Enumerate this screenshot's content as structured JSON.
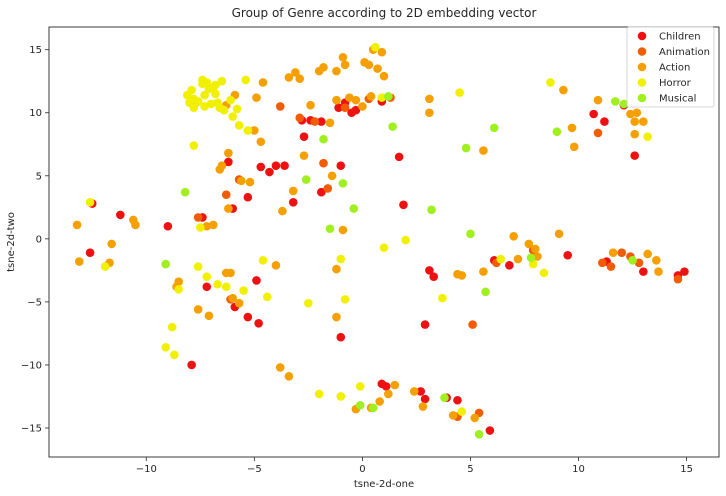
{
  "chart_data": {
    "type": "scatter",
    "title": "Group of Genre according to 2D embedding vector",
    "xlabel": "tsne-2d-one",
    "ylabel": "tsne-2d-two",
    "xlim": [
      -14.5,
      16.5
    ],
    "ylim": [
      -17.3,
      16.8
    ],
    "xticks": [
      -10,
      -5,
      0,
      5,
      10,
      15
    ],
    "yticks": [
      -15,
      -10,
      -5,
      0,
      5,
      10,
      15
    ],
    "grid": false,
    "legend_position": "top-right",
    "series": [
      {
        "name": "Children",
        "color": "#ee1111",
        "points": [
          [
            -12.5,
            2.8
          ],
          [
            -12.6,
            -1.1
          ],
          [
            -11.2,
            1.9
          ],
          [
            -9.0,
            1.0
          ],
          [
            -7.4,
            1.7
          ],
          [
            -7.2,
            -3.8
          ],
          [
            -6.2,
            6.1
          ],
          [
            -6.0,
            2.4
          ],
          [
            -5.7,
            4.7
          ],
          [
            -5.3,
            3.3
          ],
          [
            -4.7,
            5.7
          ],
          [
            -4.3,
            5.3
          ],
          [
            -4.0,
            5.8
          ],
          [
            -3.6,
            5.8
          ],
          [
            -5.9,
            -5.4
          ],
          [
            -5.3,
            -6.2
          ],
          [
            -4.8,
            -6.7
          ],
          [
            -4.9,
            -3.3
          ],
          [
            -3.2,
            2.9
          ],
          [
            -2.7,
            8.1
          ],
          [
            -2.8,
            9.4
          ],
          [
            -2.4,
            9.4
          ],
          [
            -1.9,
            9.3
          ],
          [
            -1.9,
            3.7
          ],
          [
            -1.0,
            5.8
          ],
          [
            -1.1,
            10.4
          ],
          [
            -0.8,
            10.8
          ],
          [
            -0.5,
            10.0
          ],
          [
            -0.3,
            10.2
          ],
          [
            0.9,
            10.9
          ],
          [
            1.7,
            6.5
          ],
          [
            1.9,
            2.7
          ],
          [
            -7.9,
            -10.0
          ],
          [
            -1.0,
            -7.8
          ],
          [
            2.9,
            -6.8
          ],
          [
            3.1,
            -2.5
          ],
          [
            3.3,
            -3.0
          ],
          [
            0.9,
            -11.5
          ],
          [
            1.1,
            -11.7
          ],
          [
            2.7,
            -12.1
          ],
          [
            2.9,
            -12.7
          ],
          [
            3.9,
            -12.6
          ],
          [
            4.4,
            -12.8
          ],
          [
            5.9,
            -15.2
          ],
          [
            6.1,
            -1.7
          ],
          [
            6.8,
            -2.1
          ],
          [
            9.5,
            -1.3
          ],
          [
            10.7,
            9.9
          ],
          [
            11.2,
            9.3
          ],
          [
            11.3,
            -1.8
          ],
          [
            12.1,
            10.6
          ],
          [
            12.6,
            6.6
          ],
          [
            13.0,
            -2.6
          ],
          [
            14.6,
            -2.9
          ],
          [
            14.9,
            -2.6
          ]
        ]
      },
      {
        "name": "Animation",
        "color": "#f25c05",
        "points": [
          [
            -7.6,
            1.7
          ],
          [
            -6.3,
            3.5
          ],
          [
            -6.1,
            -4.8
          ],
          [
            -5.7,
            4.7
          ],
          [
            -3.8,
            10.5
          ],
          [
            -2.9,
            9.6
          ],
          [
            -2.2,
            9.3
          ],
          [
            -1.8,
            6.0
          ],
          [
            -1.6,
            4.0
          ],
          [
            -0.8,
            10.4
          ],
          [
            0.3,
            11.1
          ],
          [
            1.3,
            11.2
          ],
          [
            5.1,
            -6.8
          ],
          [
            6.2,
            -1.9
          ],
          [
            7.9,
            -0.9
          ],
          [
            10.9,
            8.4
          ],
          [
            11.1,
            -1.9
          ],
          [
            11.5,
            -2.2
          ],
          [
            12.0,
            -1.1
          ],
          [
            12.4,
            -1.4
          ],
          [
            12.8,
            -1.9
          ],
          [
            14.6,
            -3.2
          ],
          [
            5.4,
            -13.8
          ],
          [
            4.4,
            -14.1
          ]
        ]
      },
      {
        "name": "Action",
        "color": "#f5a000",
        "points": [
          [
            -13.2,
            1.1
          ],
          [
            -13.1,
            -1.8
          ],
          [
            -11.6,
            -0.4
          ],
          [
            -11.7,
            -1.9
          ],
          [
            -10.6,
            1.5
          ],
          [
            -10.5,
            1.1
          ],
          [
            -8.6,
            -3.8
          ],
          [
            -8.5,
            -3.4
          ],
          [
            -7.6,
            -5.6
          ],
          [
            -7.1,
            -6.1
          ],
          [
            -7.2,
            1.0
          ],
          [
            -6.9,
            1.1
          ],
          [
            -6.6,
            5.5
          ],
          [
            -6.5,
            5.8
          ],
          [
            -6.2,
            6.8
          ],
          [
            -6.2,
            2.4
          ],
          [
            -6.3,
            -2.7
          ],
          [
            -6.1,
            -2.7
          ],
          [
            -6.0,
            -4.7
          ],
          [
            -5.7,
            -5.1
          ],
          [
            -5.6,
            4.6
          ],
          [
            -5.2,
            4.5
          ],
          [
            -5.0,
            8.6
          ],
          [
            -4.9,
            11.2
          ],
          [
            -4.7,
            7.7
          ],
          [
            -4.6,
            12.4
          ],
          [
            -4.0,
            -2.1
          ],
          [
            -3.7,
            2.2
          ],
          [
            -3.8,
            -10.2
          ],
          [
            -3.4,
            -10.9
          ],
          [
            -3.2,
            3.8
          ],
          [
            -3.4,
            12.8
          ],
          [
            -3.1,
            13.2
          ],
          [
            -2.9,
            12.7
          ],
          [
            -2.7,
            6.6
          ],
          [
            -2.4,
            10.6
          ],
          [
            -2.0,
            13.3
          ],
          [
            -1.8,
            13.6
          ],
          [
            -1.5,
            9.2
          ],
          [
            -1.4,
            5.0
          ],
          [
            -1.2,
            13.3
          ],
          [
            -1.2,
            11.0
          ],
          [
            -0.9,
            14.4
          ],
          [
            -0.6,
            11.2
          ],
          [
            -0.3,
            11.0
          ],
          [
            -0.8,
            13.8
          ],
          [
            0.0,
            10.5
          ],
          [
            0.1,
            14.0
          ],
          [
            0.3,
            13.8
          ],
          [
            0.5,
            15.0
          ],
          [
            0.7,
            13.5
          ],
          [
            0.9,
            14.8
          ],
          [
            1.0,
            12.9
          ],
          [
            -0.9,
            0.7
          ],
          [
            -1.2,
            -2.4
          ],
          [
            -1.2,
            -6.2
          ],
          [
            0.4,
            11.3
          ],
          [
            3.1,
            11.1
          ],
          [
            3.1,
            10.0
          ],
          [
            4.4,
            -2.8
          ],
          [
            4.6,
            -2.9
          ],
          [
            5.6,
            7.0
          ],
          [
            5.6,
            -2.6
          ],
          [
            7.0,
            0.2
          ],
          [
            7.2,
            -1.6
          ],
          [
            7.7,
            -0.4
          ],
          [
            8.0,
            -0.8
          ],
          [
            8.1,
            -1.4
          ],
          [
            9.1,
            0.4
          ],
          [
            9.3,
            11.8
          ],
          [
            9.7,
            8.8
          ],
          [
            9.8,
            7.3
          ],
          [
            10.9,
            11.0
          ],
          [
            11.6,
            -1.1
          ],
          [
            12.4,
            9.9
          ],
          [
            12.6,
            8.3
          ],
          [
            12.6,
            9.3
          ],
          [
            12.7,
            10.0
          ],
          [
            13.0,
            9.3
          ],
          [
            13.2,
            -1.2
          ],
          [
            13.6,
            -1.7
          ],
          [
            13.7,
            -2.6
          ],
          [
            1.2,
            -12.3
          ],
          [
            1.5,
            -11.6
          ],
          [
            0.8,
            -12.9
          ],
          [
            0.4,
            -13.4
          ],
          [
            -0.3,
            -13.5
          ],
          [
            2.4,
            -12.1
          ],
          [
            2.8,
            -13.3
          ],
          [
            4.2,
            -14.0
          ],
          [
            5.2,
            -14.2
          ],
          [
            -7.7,
            10.8
          ],
          [
            -6.3,
            10.6
          ],
          [
            -5.9,
            11.4
          ]
        ]
      },
      {
        "name": "Horror",
        "color": "#f0f000",
        "points": [
          [
            -12.6,
            2.9
          ],
          [
            -11.9,
            -2.2
          ],
          [
            -8.8,
            -7.0
          ],
          [
            -8.7,
            -9.2
          ],
          [
            -9.1,
            -8.6
          ],
          [
            -8.5,
            -4.0
          ],
          [
            -7.8,
            7.4
          ],
          [
            -7.6,
            -2.2
          ],
          [
            -7.5,
            0.9
          ],
          [
            -7.2,
            -3.0
          ],
          [
            -6.7,
            -3.6
          ],
          [
            -6.3,
            -3.8
          ],
          [
            -5.5,
            -4.1
          ],
          [
            -5.7,
            9.0
          ],
          [
            -5.4,
            12.6
          ],
          [
            -4.6,
            -1.7
          ],
          [
            -4.4,
            -4.6
          ],
          [
            -2.5,
            -5.1
          ],
          [
            -2.0,
            -12.3
          ],
          [
            -1.0,
            -1.6
          ],
          [
            -0.8,
            -4.8
          ],
          [
            -1.0,
            -12.5
          ],
          [
            -0.1,
            -11.7
          ],
          [
            1.0,
            -0.7
          ],
          [
            2.0,
            -0.1
          ],
          [
            3.7,
            -4.7
          ],
          [
            4.6,
            -13.7
          ],
          [
            6.4,
            -1.6
          ],
          [
            7.9,
            -2.0
          ],
          [
            8.4,
            -2.7
          ],
          [
            8.7,
            12.4
          ],
          [
            13.2,
            8.1
          ],
          [
            0.6,
            15.2
          ],
          [
            -7.4,
            12.6
          ],
          [
            -7.9,
            11.8
          ],
          [
            -8.1,
            11.4
          ],
          [
            -7.8,
            11.1
          ],
          [
            -7.6,
            10.9
          ],
          [
            -7.8,
            10.4
          ],
          [
            -7.3,
            10.5
          ],
          [
            -7.0,
            10.7
          ],
          [
            -7.4,
            12.3
          ],
          [
            -7.2,
            12.4
          ],
          [
            -6.9,
            12.0
          ],
          [
            -6.8,
            11.5
          ],
          [
            -6.6,
            10.4
          ],
          [
            -6.4,
            10.2
          ],
          [
            -6.1,
            11.0
          ],
          [
            -5.8,
            10.3
          ],
          [
            -6.8,
            12.2
          ],
          [
            -8.0,
            10.8
          ],
          [
            -7.3,
            11.4
          ],
          [
            -6.5,
            12.5
          ],
          [
            -7.1,
            11.9
          ],
          [
            -6.7,
            10.8
          ],
          [
            -6.0,
            9.7
          ],
          [
            -5.3,
            8.6
          ],
          [
            4.5,
            11.6
          ],
          [
            0.9,
            11.2
          ]
        ]
      },
      {
        "name": "Musical",
        "color": "#a0f020",
        "points": [
          [
            -8.2,
            3.7
          ],
          [
            -9.1,
            -2.0
          ],
          [
            -2.6,
            4.7
          ],
          [
            -1.8,
            7.9
          ],
          [
            -1.5,
            0.8
          ],
          [
            -0.9,
            4.4
          ],
          [
            -0.4,
            2.4
          ],
          [
            1.4,
            8.9
          ],
          [
            1.2,
            11.3
          ],
          [
            3.2,
            2.3
          ],
          [
            4.8,
            7.2
          ],
          [
            5.0,
            0.4
          ],
          [
            5.7,
            -4.2
          ],
          [
            6.1,
            8.8
          ],
          [
            7.8,
            -1.5
          ],
          [
            9.0,
            8.5
          ],
          [
            11.7,
            10.9
          ],
          [
            12.1,
            10.7
          ],
          [
            12.5,
            -1.7
          ],
          [
            0.5,
            -13.4
          ],
          [
            -0.1,
            -13.2
          ],
          [
            3.8,
            -12.6
          ],
          [
            5.4,
            -15.5
          ]
        ]
      }
    ]
  }
}
